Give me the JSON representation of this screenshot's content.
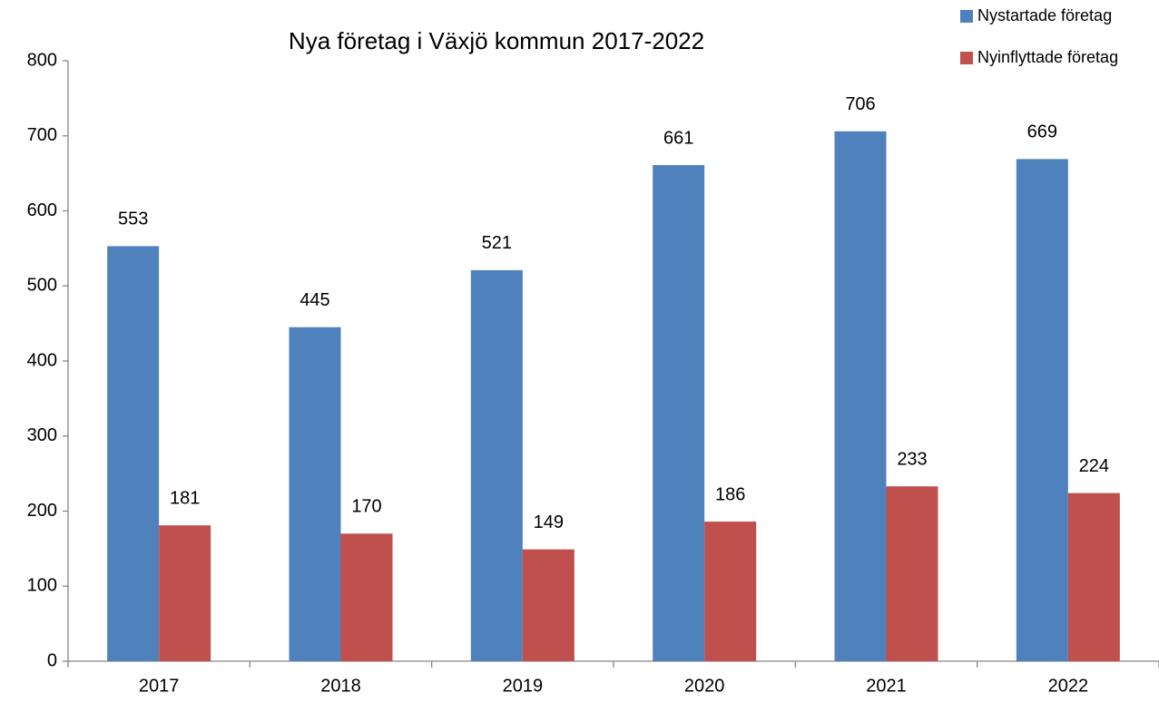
{
  "chart_data": {
    "type": "bar",
    "title": "Nya företag i Växjö kommun 2017-2022",
    "categories": [
      "2017",
      "2018",
      "2019",
      "2020",
      "2021",
      "2022"
    ],
    "series": [
      {
        "name": "Nystartade företag",
        "color": "#4f81bd",
        "values": [
          553,
          445,
          521,
          661,
          706,
          669
        ]
      },
      {
        "name": "Nyinflyttade företag",
        "color": "#c0504d",
        "values": [
          181,
          170,
          149,
          186,
          233,
          224
        ]
      }
    ],
    "ylim": [
      0,
      800
    ],
    "yticks": [
      0,
      100,
      200,
      300,
      400,
      500,
      600,
      700,
      800
    ],
    "grid": false,
    "legend": "top-right"
  }
}
